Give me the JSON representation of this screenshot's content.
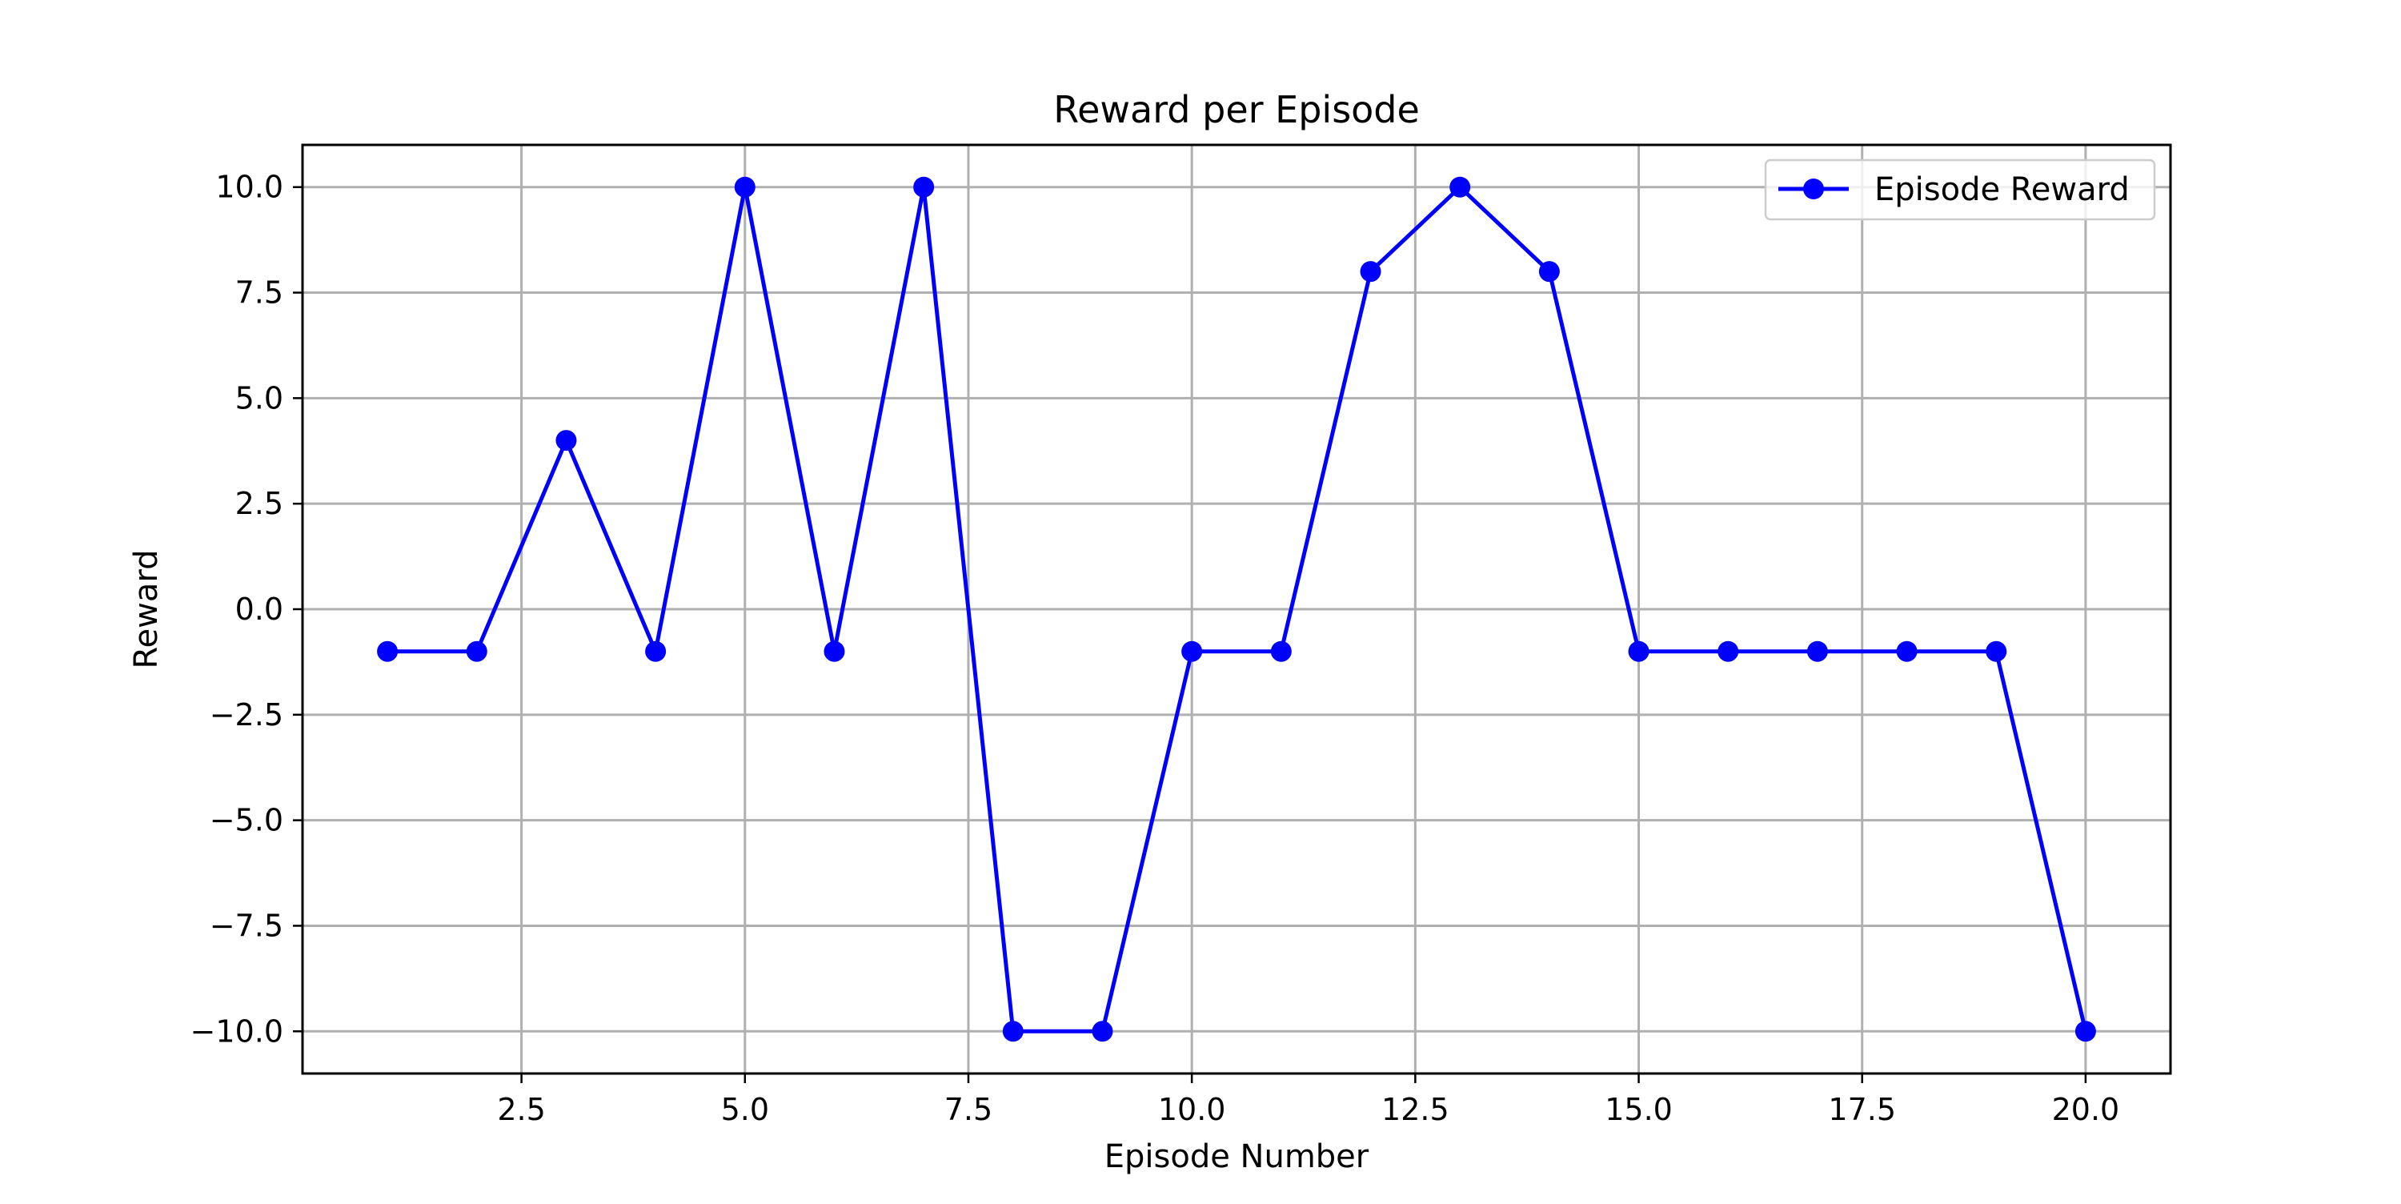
{
  "chart_data": {
    "type": "line",
    "title": "Reward per Episode",
    "xlabel": "Episode Number",
    "ylabel": "Reward",
    "xlim": [
      0.05,
      20.95
    ],
    "ylim": [
      -11.0,
      11.0
    ],
    "xticks": [
      2.5,
      5.0,
      7.5,
      10.0,
      12.5,
      15.0,
      17.5,
      20.0
    ],
    "xtick_labels": [
      "2.5",
      "5.0",
      "7.5",
      "10.0",
      "12.5",
      "15.0",
      "17.5",
      "20.0"
    ],
    "yticks": [
      10.0,
      7.5,
      5.0,
      2.5,
      0.0,
      -2.5,
      -5.0,
      -7.5,
      -10.0
    ],
    "ytick_labels": [
      "10.0",
      "7.5",
      "5.0",
      "2.5",
      "0.0",
      "−2.5",
      "−5.0",
      "−7.5",
      "−10.0"
    ],
    "grid": true,
    "legend_position": "top-right",
    "x": [
      1,
      2,
      3,
      4,
      5,
      6,
      7,
      8,
      9,
      10,
      11,
      12,
      13,
      14,
      15,
      16,
      17,
      18,
      19,
      20
    ],
    "series": [
      {
        "name": "Episode Reward",
        "color": "#0000ff",
        "marker": "circle",
        "values": [
          -1,
          -1,
          4,
          -1,
          10,
          -1,
          10,
          -10,
          -10,
          -1,
          -1,
          8,
          10,
          8,
          -1,
          -1,
          -1,
          -1,
          -1,
          -10
        ]
      }
    ]
  }
}
